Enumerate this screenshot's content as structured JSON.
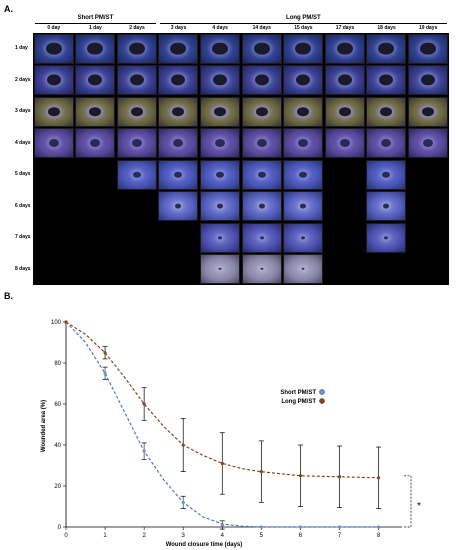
{
  "panel_a": {
    "label": "A.",
    "groups": [
      {
        "name": "Short PM/ST",
        "span": [
          0,
          3
        ]
      },
      {
        "name": "Long PM/ST",
        "span": [
          3,
          10
        ]
      }
    ],
    "columns": [
      "0 day",
      "1 day",
      "2 days",
      "3 days",
      "4 days",
      "14 days",
      "15 days",
      "17 days",
      "18 days",
      "19 days"
    ],
    "rows": [
      "1 day",
      "2 days",
      "3 days",
      "4 days",
      "5 days",
      "6 days",
      "7 days",
      "8 days"
    ],
    "rows_present_per_column": [
      4,
      4,
      5,
      6,
      8,
      8,
      8,
      4,
      7,
      4
    ],
    "colors": {
      "tissue_blue": "#3d4fa8",
      "tissue_purple": "#6d5bb5",
      "tissue_brown": "#8a7a4a",
      "empty": "#000000"
    }
  },
  "panel_b": {
    "label": "B.",
    "chart_data": {
      "type": "line",
      "xlabel": "Wound closure time (days)",
      "ylabel": "Wounded area (%)",
      "xlim": [
        0,
        8.6
      ],
      "ylim": [
        0,
        100
      ],
      "xticks": [
        0,
        1,
        2,
        3,
        4,
        5,
        6,
        7,
        8
      ],
      "yticks": [
        0,
        20,
        40,
        60,
        80,
        100
      ],
      "legend_position": "right",
      "series": [
        {
          "name": "Short PM/ST",
          "color": "#3a6fc4",
          "marker": "#6d8fd8",
          "x": [
            0,
            1,
            2,
            3,
            4,
            5,
            6,
            7,
            8
          ],
          "y": [
            100,
            75,
            37,
            12,
            1,
            0,
            0,
            0,
            0
          ],
          "err": [
            0,
            3,
            4,
            3,
            2,
            0,
            0,
            0,
            0
          ],
          "curve": [
            [
              0,
              100
            ],
            [
              0.5,
              90
            ],
            [
              1,
              75
            ],
            [
              1.5,
              56
            ],
            [
              2,
              37
            ],
            [
              2.5,
              23
            ],
            [
              3,
              12
            ],
            [
              3.5,
              5
            ],
            [
              4,
              1.5
            ],
            [
              4.5,
              0.4
            ],
            [
              5,
              0
            ],
            [
              6,
              0
            ],
            [
              7,
              0
            ],
            [
              8,
              0
            ]
          ]
        },
        {
          "name": "Long PM/ST",
          "color": "#7a3a12",
          "marker": "#8b4513",
          "x": [
            0,
            1,
            2,
            3,
            4,
            5,
            6,
            7,
            8
          ],
          "y": [
            100,
            85,
            60,
            40,
            31,
            27,
            25,
            24.5,
            24
          ],
          "err": [
            0,
            3,
            8,
            13,
            15,
            15,
            15,
            15,
            15
          ],
          "curve": [
            [
              0,
              100
            ],
            [
              0.5,
              94
            ],
            [
              1,
              85
            ],
            [
              1.5,
              73
            ],
            [
              2,
              60
            ],
            [
              2.5,
              49
            ],
            [
              3,
              40
            ],
            [
              3.5,
              35
            ],
            [
              4,
              31
            ],
            [
              4.5,
              28.5
            ],
            [
              5,
              27
            ],
            [
              6,
              25
            ],
            [
              7,
              24.5
            ],
            [
              8,
              24
            ]
          ]
        }
      ],
      "significance": "*"
    }
  }
}
